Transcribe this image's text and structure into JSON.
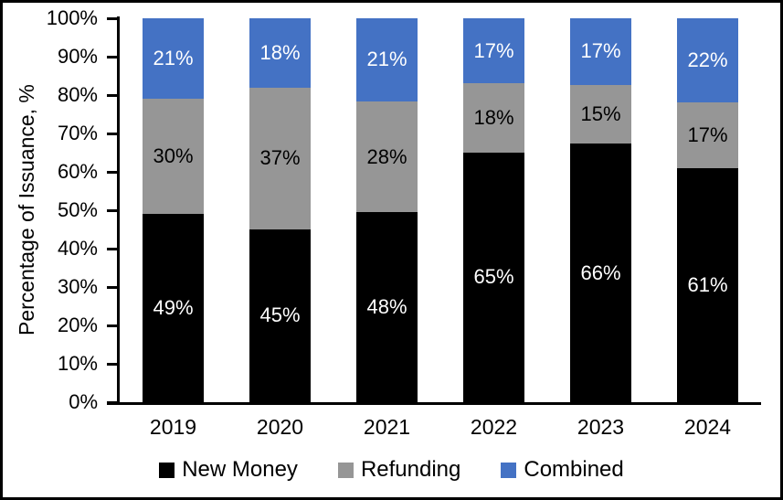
{
  "chart_data": {
    "type": "bar",
    "stacked": true,
    "orientation": "vertical",
    "title": "",
    "xlabel": "",
    "ylabel": "Percentage of Issuance, %",
    "ylim": [
      0,
      100
    ],
    "grid": false,
    "legend_position": "bottom",
    "categories": [
      "2019",
      "2020",
      "2021",
      "2022",
      "2023",
      "2024"
    ],
    "y_ticks": [
      "0%",
      "10%",
      "20%",
      "30%",
      "40%",
      "50%",
      "60%",
      "70%",
      "80%",
      "90%",
      "100%"
    ],
    "series": [
      {
        "name": "New Money",
        "color": "#000000",
        "label_color": "#ffffff",
        "values": [
          49,
          45,
          48,
          65,
          66,
          61
        ],
        "labels": [
          "49%",
          "45%",
          "48%",
          "65%",
          "66%",
          "61%"
        ]
      },
      {
        "name": "Refunding",
        "color": "#969696",
        "label_color": "#000000",
        "values": [
          30,
          37,
          28,
          18,
          15,
          17
        ],
        "labels": [
          "30%",
          "37%",
          "28%",
          "18%",
          "15%",
          "17%"
        ]
      },
      {
        "name": "Combined",
        "color": "#4472C4",
        "label_color": "#ffffff",
        "values": [
          21,
          18,
          21,
          17,
          17,
          22
        ],
        "labels": [
          "21%",
          "18%",
          "21%",
          "17%",
          "17%",
          "22%"
        ]
      }
    ]
  }
}
